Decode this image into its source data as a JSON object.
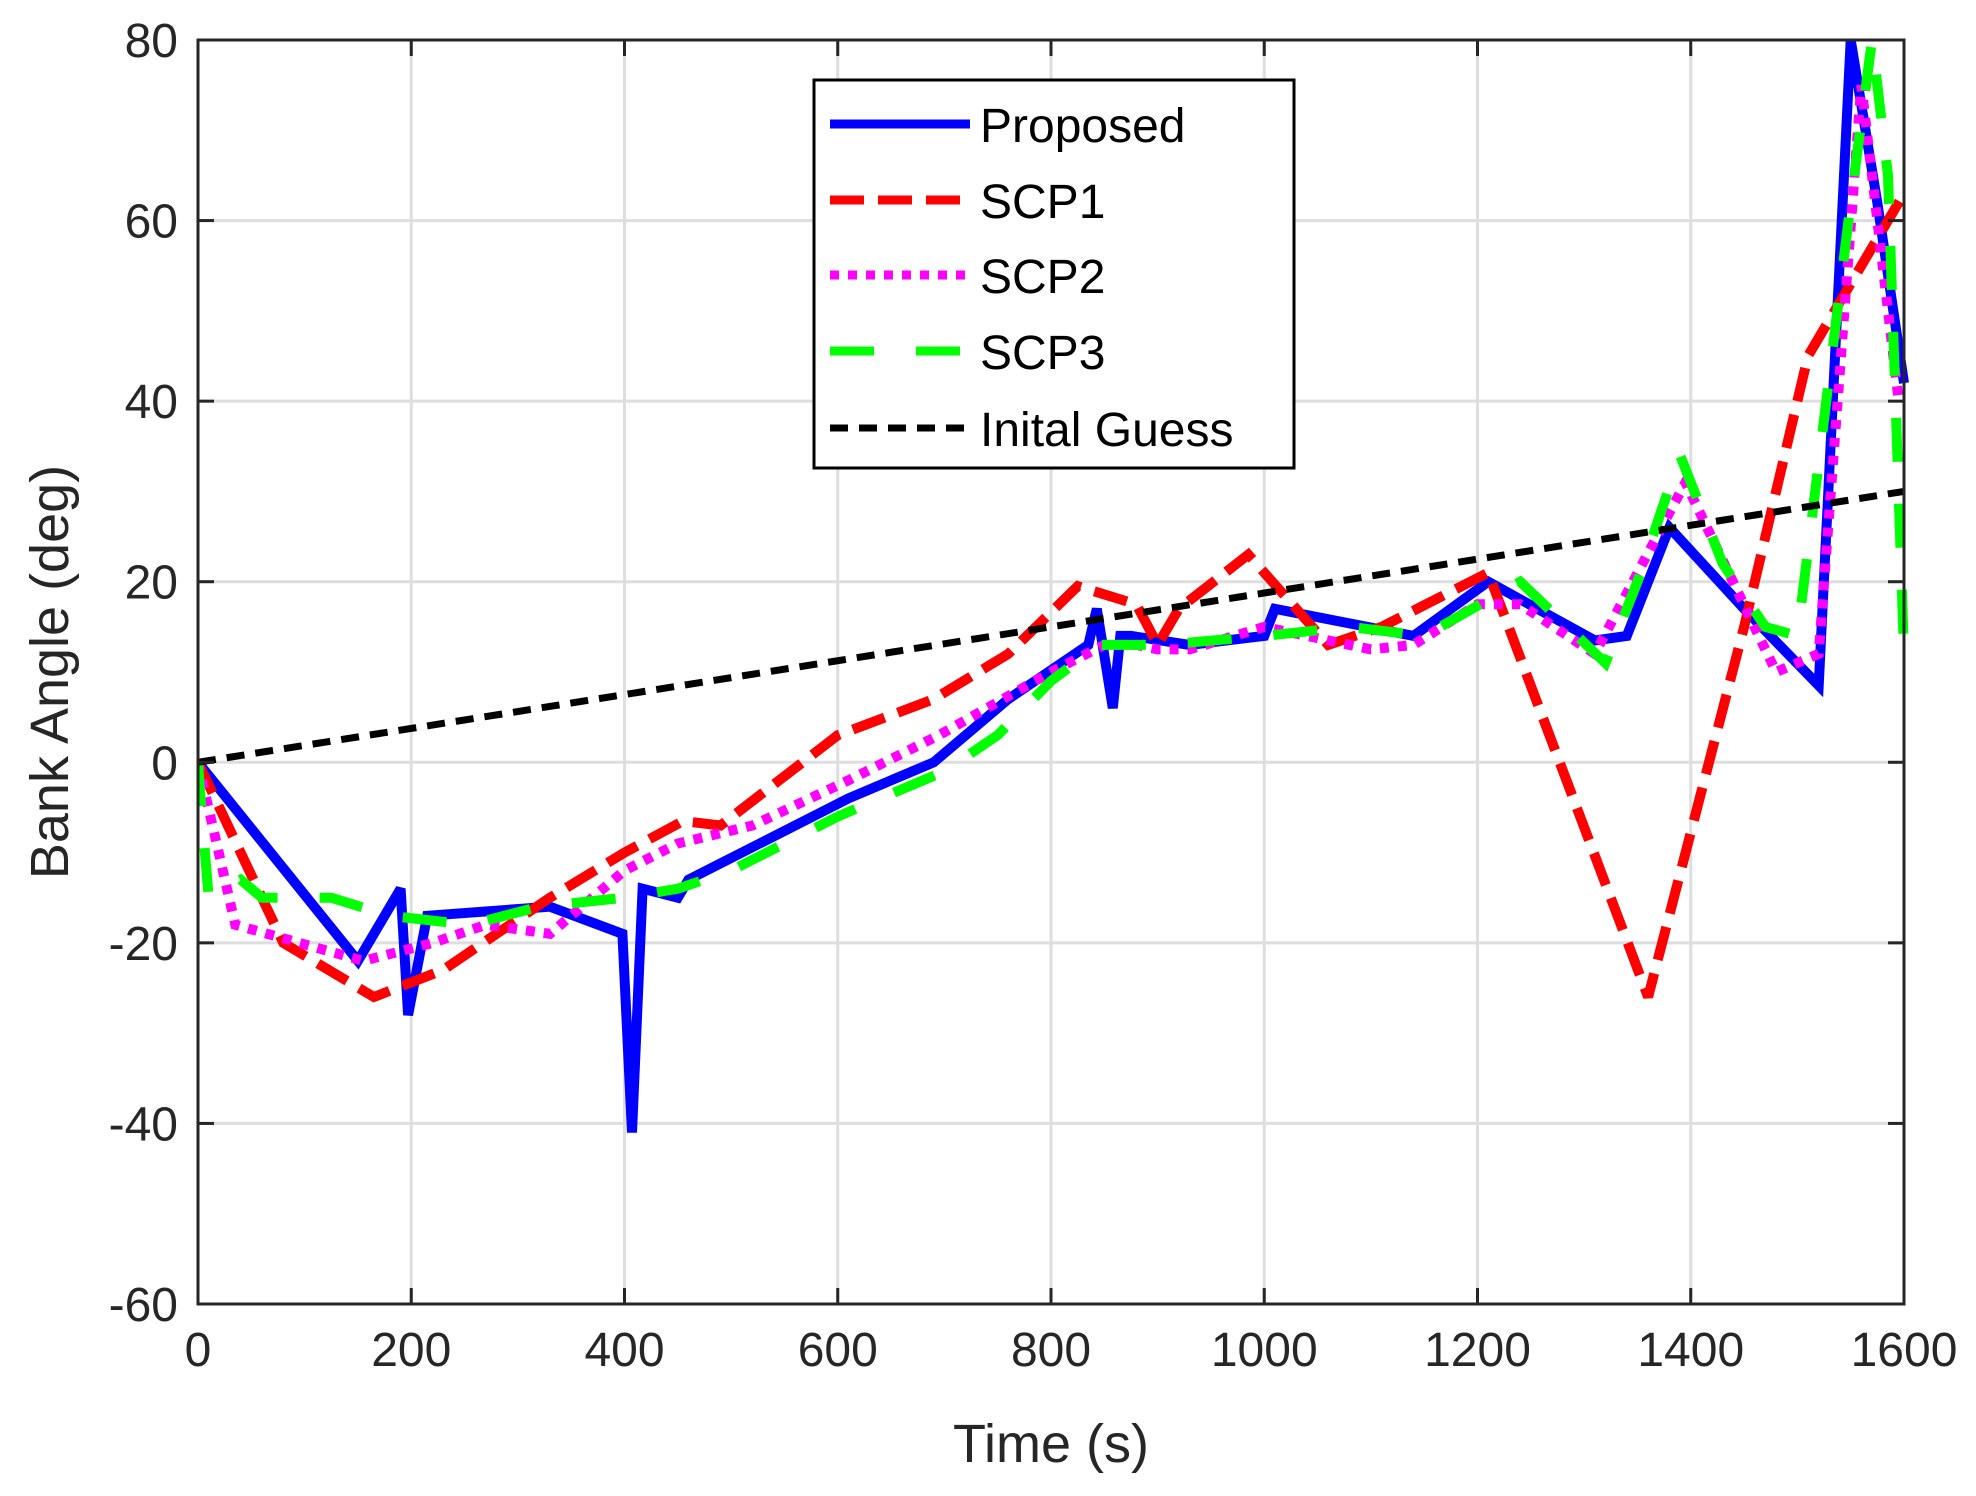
{
  "chart_data": {
    "type": "line",
    "title": "",
    "xlabel": "Time (s)",
    "ylabel": "Bank Angle (deg)",
    "xlim": [
      0,
      1600
    ],
    "ylim": [
      -60,
      80
    ],
    "xticks": [
      0,
      200,
      400,
      600,
      800,
      1000,
      1200,
      1400,
      1600
    ],
    "yticks": [
      -60,
      -40,
      -20,
      0,
      20,
      40,
      60,
      80
    ],
    "xtick_labels": [
      "0",
      "200",
      "400",
      "600",
      "800",
      "1000",
      "1200",
      "1400",
      "1600"
    ],
    "ytick_labels": [
      "-60",
      "-40",
      "-20",
      "0",
      "20",
      "40",
      "60",
      "80"
    ],
    "grid": true,
    "legend_position": "top-center",
    "series": [
      {
        "name": "Proposed",
        "color": "#0000ff",
        "style": "solid",
        "x": [
          0,
          150,
          190,
          197,
          215,
          330,
          398,
          407,
          417,
          450,
          460,
          610,
          690,
          760,
          835,
          843,
          858,
          865,
          875,
          930,
          1000,
          1010,
          1140,
          1210,
          1310,
          1340,
          1380,
          1450,
          1520,
          1550,
          1575,
          1600
        ],
        "y": [
          0,
          -22,
          -14,
          -28,
          -17,
          -16,
          -19,
          -41,
          -14,
          -15,
          -13,
          -4,
          0,
          7,
          13,
          17,
          6,
          14,
          14,
          13,
          14,
          17,
          14,
          20,
          13.5,
          14,
          26,
          17,
          8.5,
          80,
          62,
          42
        ]
      },
      {
        "name": "SCP1",
        "color": "#ff0000",
        "style": "dashed",
        "x": [
          0,
          80,
          165,
          230,
          330,
          400,
          455,
          490,
          600,
          690,
          760,
          825,
          880,
          900,
          920,
          985,
          1060,
          1110,
          1210,
          1360,
          1450,
          1510,
          1560,
          1600
        ],
        "y": [
          0,
          -20,
          -26,
          -23,
          -15,
          -10,
          -6.5,
          -7,
          3,
          7,
          12,
          19.5,
          17.5,
          13,
          17,
          23,
          13,
          15,
          21,
          -26,
          15,
          45,
          55,
          63
        ]
      },
      {
        "name": "SCP2",
        "color": "#ff00ff",
        "style": "dotted",
        "x": [
          0,
          35,
          155,
          220,
          270,
          330,
          400,
          450,
          520,
          610,
          695,
          800,
          850,
          880,
          900,
          930,
          1000,
          1100,
          1140,
          1200,
          1240,
          1310,
          1395,
          1480,
          1520,
          1560,
          1595
        ],
        "y": [
          0,
          -18,
          -22,
          -20,
          -18,
          -19,
          -12,
          -9,
          -7,
          -2,
          3,
          10,
          13,
          13,
          12.5,
          12.5,
          15,
          12.5,
          13,
          17.5,
          17.5,
          12,
          31,
          10,
          12,
          75,
          40
        ]
      },
      {
        "name": "SCP3",
        "color": "#00ff00",
        "style": "longdash",
        "x": [
          0,
          3,
          10,
          40,
          60,
          125,
          180,
          255,
          320,
          400,
          450,
          500,
          600,
          700,
          750,
          800,
          845,
          905,
          1000,
          1080,
          1150,
          1240,
          1320,
          1350,
          1390,
          1430,
          1470,
          1500,
          1550,
          1570,
          1585,
          1600
        ],
        "y": [
          0,
          -5,
          -15,
          -13,
          -15,
          -15,
          -17,
          -18,
          -16,
          -15,
          -14,
          -12,
          -6,
          -1,
          3,
          9,
          13,
          13,
          14,
          15,
          14,
          20,
          11,
          20,
          34,
          22,
          15,
          14,
          62,
          80,
          65,
          12
        ]
      },
      {
        "name": "Inital Guess",
        "color": "#000000",
        "style": "shortdash",
        "x": [
          0,
          1600
        ],
        "y": [
          0,
          30
        ]
      }
    ]
  }
}
